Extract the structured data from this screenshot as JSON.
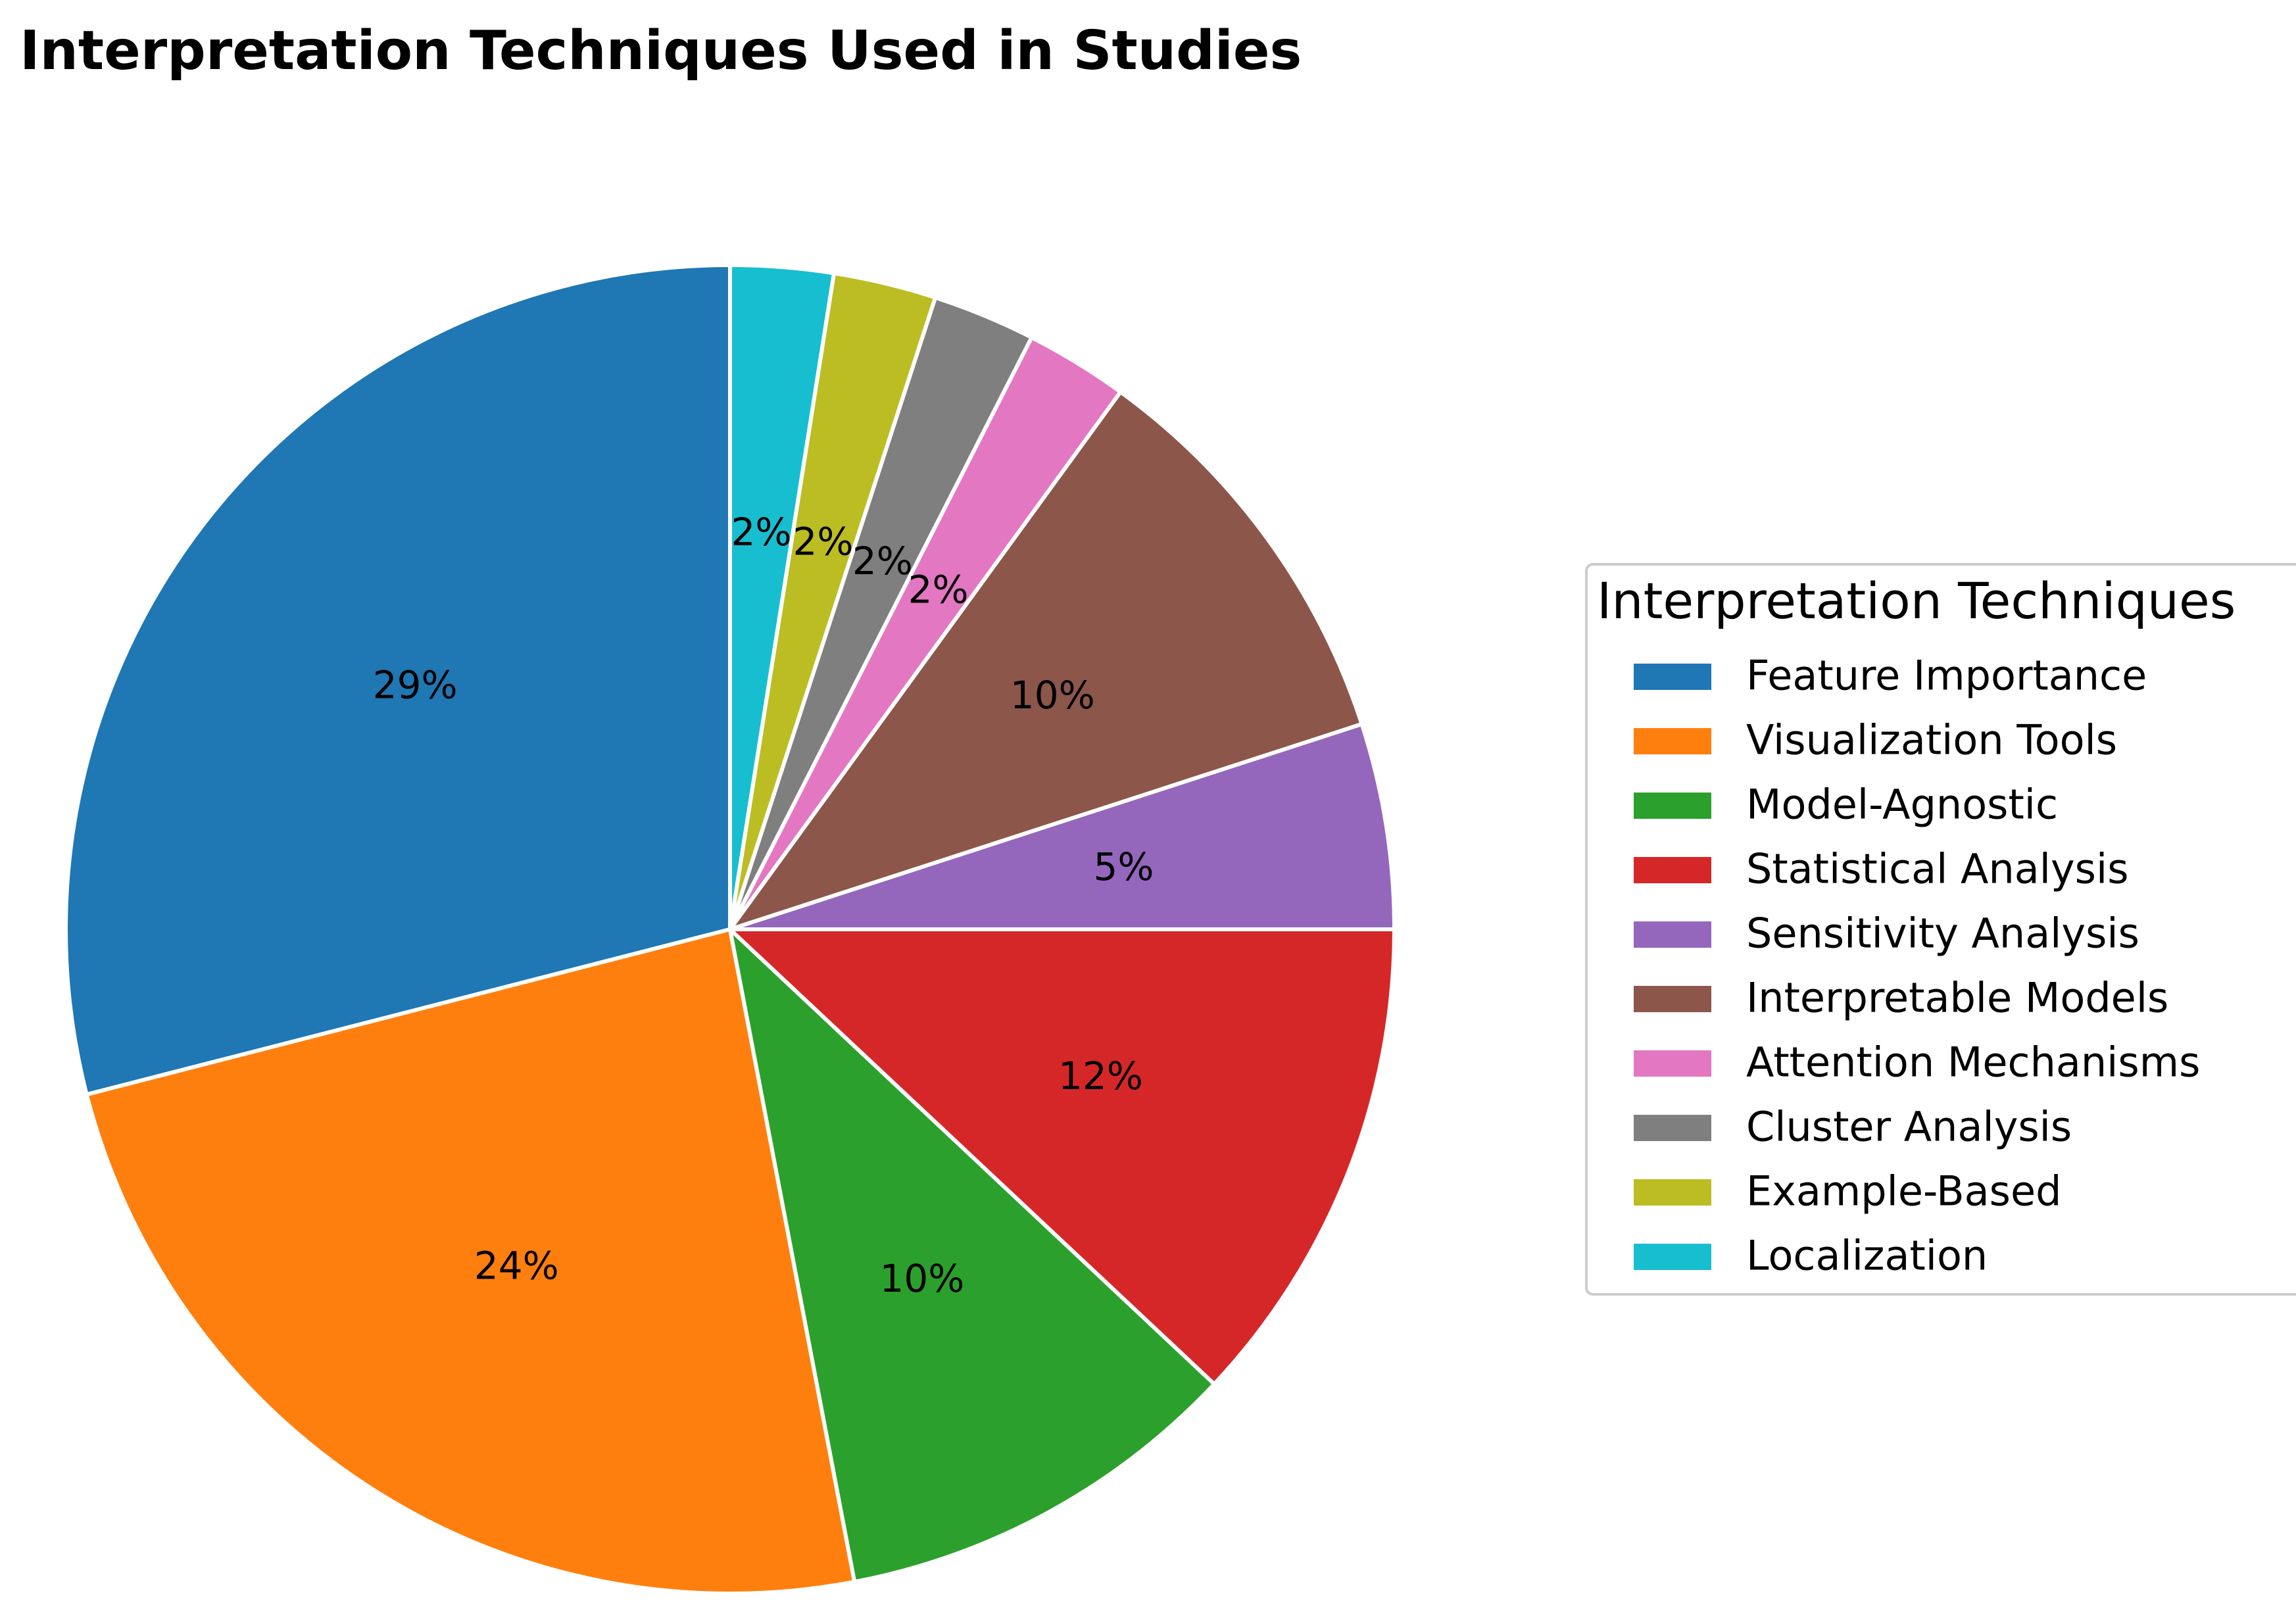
{
  "chart_data": {
    "type": "pie",
    "title": "Interpretation Techniques Used in Studies",
    "start_angle_deg": 90,
    "direction": "counterclockwise",
    "legend": {
      "title": "Interpretation Techniques",
      "placement": "center-right"
    },
    "slices": [
      {
        "label": "Feature Importance",
        "value": 29,
        "pct_label": "29%",
        "color": "#1f77b4"
      },
      {
        "label": "Visualization Tools",
        "value": 24,
        "pct_label": "24%",
        "color": "#ff7f0e"
      },
      {
        "label": "Model-Agnostic",
        "value": 10,
        "pct_label": "10%",
        "color": "#2ca02c"
      },
      {
        "label": "Statistical Analysis",
        "value": 12,
        "pct_label": "12%",
        "color": "#d62728"
      },
      {
        "label": "Sensitivity Analysis",
        "value": 5,
        "pct_label": "5%",
        "color": "#9467bd"
      },
      {
        "label": "Interpretable Models",
        "value": 10,
        "pct_label": "10%",
        "color": "#8c564b"
      },
      {
        "label": "Attention Mechanisms",
        "value": 2.5,
        "pct_label": "2%",
        "color": "#e377c2"
      },
      {
        "label": "Cluster Analysis",
        "value": 2.5,
        "pct_label": "2%",
        "color": "#7f7f7f"
      },
      {
        "label": "Example-Based",
        "value": 2.5,
        "pct_label": "2%",
        "color": "#bcbd22"
      },
      {
        "label": "Localization",
        "value": 2.5,
        "pct_label": "2%",
        "color": "#17becf"
      }
    ]
  }
}
